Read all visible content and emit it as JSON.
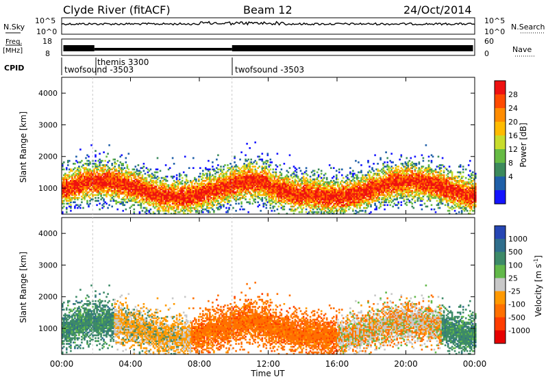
{
  "header": {
    "station": "Clyde River (fitACF)",
    "beam": "Beam 12",
    "date": "24/Oct/2014"
  },
  "top_panels": {
    "nsky_label": "N.Sky",
    "nsky_ticks": [
      "10^5",
      "10^0"
    ],
    "nsearch_label": "N.Search",
    "nsearch_ticks": [
      "10^5",
      "10^0"
    ],
    "freq_label": "Freq.",
    "freq_unit": "[MHz]",
    "freq_ticks": [
      "18",
      "8"
    ],
    "nave_label": "Nave",
    "nave_ticks": [
      "60",
      "0"
    ],
    "cpid_label": "CPID"
  },
  "cpid_segments": [
    {
      "start_hour": 0.0,
      "label": "twofsound -3503"
    },
    {
      "start_hour": 1.8,
      "label": "themis 3300"
    },
    {
      "start_hour": 9.9,
      "label": "twofsound -3503"
    }
  ],
  "legend": {
    "power_label": "Power [dB]",
    "power_ticks": [
      "28",
      "24",
      "20",
      "16",
      "12",
      "8",
      "4"
    ],
    "power_colors": [
      "#ee1111",
      "#ff4a00",
      "#ff8c00",
      "#ffbb00",
      "#c8dc2c",
      "#66bb44",
      "#3c8a5c",
      "#1f5fa8",
      "#1414ff"
    ],
    "velocity_label": "Velocity [m s",
    "velocity_label_sup": "-1",
    "velocity_label_end": "]",
    "velocity_ticks": [
      "1000",
      "500",
      "100",
      "25",
      "-25",
      "-100",
      "-500",
      "-1000"
    ],
    "velocity_colors": [
      "#2646b4",
      "#2f6e8c",
      "#3d8a68",
      "#62b84a",
      "#c8c8c8",
      "#ff9900",
      "#ff7000",
      "#ff3c00",
      "#e60000"
    ]
  },
  "chart_data": [
    {
      "type": "heatmap",
      "name": "power",
      "ylabel": "Slant Range [km]",
      "ylim": [
        180,
        4500
      ],
      "yticks": [
        "4000",
        "3000",
        "2000",
        "1000"
      ],
      "xlim": [
        0,
        24
      ],
      "colorbar": "Power [dB]",
      "colorbar_range": [
        0,
        30
      ]
    },
    {
      "type": "heatmap",
      "name": "velocity",
      "ylabel": "Slant Range [km]",
      "ylim": [
        180,
        4500
      ],
      "yticks": [
        "4000",
        "3000",
        "2000",
        "1000"
      ],
      "xlim": [
        0,
        24
      ],
      "xticks": [
        "00:00",
        "04:00",
        "08:00",
        "12:00",
        "16:00",
        "20:00",
        "00:00"
      ],
      "xlabel": "Time UT",
      "colorbar": "Velocity [m s^-1]",
      "colorbar_range": [
        -1000,
        1000
      ]
    }
  ]
}
